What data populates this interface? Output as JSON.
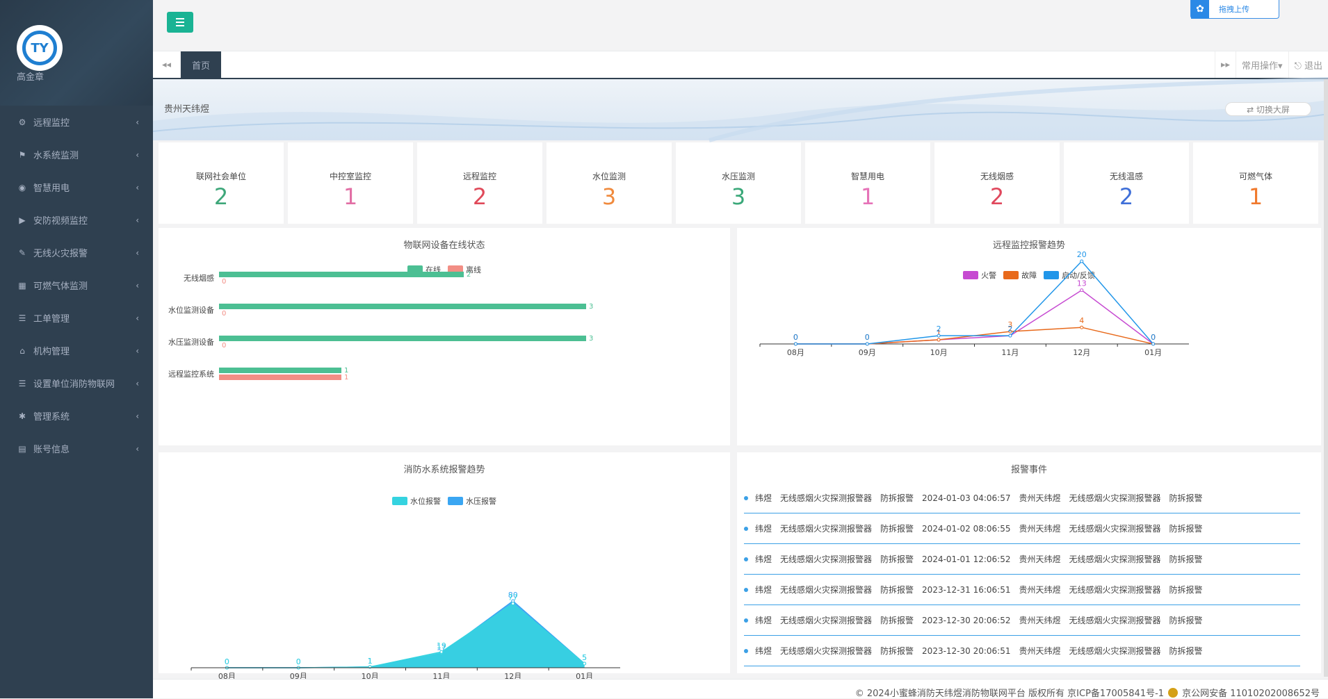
{
  "user": {
    "name": "高金章"
  },
  "sidebar": {
    "items": [
      {
        "label": "远程监控",
        "icon": "cogs-icon",
        "glyph": "⚙"
      },
      {
        "label": "水系统监测",
        "icon": "flag-icon",
        "glyph": "⚑"
      },
      {
        "label": "智慧用电",
        "icon": "compass-icon",
        "glyph": "◉"
      },
      {
        "label": "安防视频监控",
        "icon": "play-circle-icon",
        "glyph": "▶"
      },
      {
        "label": "无线火灾报警",
        "icon": "fire-icon",
        "glyph": "✎"
      },
      {
        "label": "可燃气体监测",
        "icon": "table-icon",
        "glyph": "▦"
      },
      {
        "label": "工单管理",
        "icon": "list-icon",
        "glyph": "☰"
      },
      {
        "label": "机构管理",
        "icon": "bank-icon",
        "glyph": "⌂"
      },
      {
        "label": "设置单位消防物联网",
        "icon": "list-icon",
        "glyph": "☰"
      },
      {
        "label": "管理系统",
        "icon": "gear-icon",
        "glyph": "✱"
      },
      {
        "label": "账号信息",
        "icon": "book-icon",
        "glyph": "▤"
      }
    ],
    "arrow": "‹"
  },
  "top": {
    "upload_label": "拖拽上传"
  },
  "tabs": {
    "home": "首页",
    "left_nav": "◂◂",
    "right_nav": "▸▸",
    "ops": "常用操作▾",
    "logout": "⎋ 退出"
  },
  "banner": {
    "title": "贵州天纬煜",
    "fullscreen": "⇄ 切换大屏"
  },
  "stats": [
    {
      "label": "联网社会单位",
      "value": "2",
      "color": "#3ea77a"
    },
    {
      "label": "中控室监控",
      "value": "1",
      "color": "#e26fa5"
    },
    {
      "label": "远程监控",
      "value": "2",
      "color": "#e04a5a"
    },
    {
      "label": "水位监测",
      "value": "3",
      "color": "#f08a3d"
    },
    {
      "label": "水压监测",
      "value": "3",
      "color": "#3aa879"
    },
    {
      "label": "智慧用电",
      "value": "1",
      "color": "#e673b8"
    },
    {
      "label": "无线烟感",
      "value": "2",
      "color": "#e0485d"
    },
    {
      "label": "无线温感",
      "value": "2",
      "color": "#3f6fd8"
    },
    {
      "label": "可燃气体",
      "value": "1",
      "color": "#f07a2e"
    }
  ],
  "chart_online": {
    "title": "物联网设备在线状态",
    "legend": [
      {
        "label": "在线",
        "color": "#4cbf93"
      },
      {
        "label": "离线",
        "color": "#f28e85"
      }
    ]
  },
  "chart_remote": {
    "title": "远程监控报警趋势",
    "legend": [
      {
        "label": "火警",
        "color": "#c64ad1"
      },
      {
        "label": "故障",
        "color": "#e8691b"
      },
      {
        "label": "启动/反馈",
        "color": "#2196e9"
      }
    ]
  },
  "chart_water": {
    "title": "消防水系统报警趋势",
    "legend": [
      {
        "label": "水位报警",
        "color": "#35d3e0"
      },
      {
        "label": "水压报警",
        "color": "#3aa6f2"
      }
    ]
  },
  "chart_data": [
    {
      "type": "bar",
      "orientation": "horizontal",
      "title": "物联网设备在线状态",
      "categories": [
        "无线烟感",
        "水位监测设备",
        "水压监测设备",
        "远程监控系统"
      ],
      "series": [
        {
          "name": "在线",
          "values": [
            2,
            3,
            3,
            1
          ],
          "color": "#4cbf93"
        },
        {
          "name": "离线",
          "values": [
            0,
            0,
            0,
            1
          ],
          "color": "#f28e85"
        }
      ],
      "xlim": [
        0,
        3
      ]
    },
    {
      "type": "line",
      "title": "远程监控报警趋势",
      "categories": [
        "08月",
        "09月",
        "10月",
        "11月",
        "12月",
        "01月"
      ],
      "series": [
        {
          "name": "火警",
          "values": [
            0,
            0,
            1,
            2,
            13,
            0
          ],
          "color": "#c64ad1"
        },
        {
          "name": "故障",
          "values": [
            0,
            0,
            1,
            3,
            4,
            0
          ],
          "color": "#e8691b"
        },
        {
          "name": "启动/反馈",
          "values": [
            0,
            0,
            2,
            2,
            20,
            0
          ],
          "color": "#2196e9"
        }
      ],
      "ylim": [
        0,
        20
      ]
    },
    {
      "type": "area",
      "title": "消防水系统报警趋势",
      "categories": [
        "08月",
        "09月",
        "10月",
        "11月",
        "12月",
        "01月"
      ],
      "series": [
        {
          "name": "水位报警",
          "values": [
            0,
            0,
            1,
            19,
            77,
            5
          ],
          "color": "#35d3e0"
        },
        {
          "name": "水压报警",
          "values": [
            0,
            0,
            1,
            17,
            80,
            5
          ],
          "color": "#3aa6f2"
        }
      ],
      "ylim": [
        0,
        80
      ]
    }
  ],
  "events": {
    "title": "报警事件",
    "rows": [
      {
        "a": "纬煜",
        "b": "无线感烟火灾探测报警器",
        "c": "防拆报警",
        "time": "2024-01-03 04:06:57",
        "org": "贵州天纬煜",
        "dev": "无线感烟火灾探测报警器",
        "type": "防拆报警"
      },
      {
        "a": "纬煜",
        "b": "无线感烟火灾探测报警器",
        "c": "防拆报警",
        "time": "2024-01-02 08:06:55",
        "org": "贵州天纬煜",
        "dev": "无线感烟火灾探测报警器",
        "type": "防拆报警"
      },
      {
        "a": "纬煜",
        "b": "无线感烟火灾探测报警器",
        "c": "防拆报警",
        "time": "2024-01-01 12:06:52",
        "org": "贵州天纬煜",
        "dev": "无线感烟火灾探测报警器",
        "type": "防拆报警"
      },
      {
        "a": "纬煜",
        "b": "无线感烟火灾探测报警器",
        "c": "防拆报警",
        "time": "2023-12-31 16:06:51",
        "org": "贵州天纬煜",
        "dev": "无线感烟火灾探测报警器",
        "type": "防拆报警"
      },
      {
        "a": "纬煜",
        "b": "无线感烟火灾探测报警器",
        "c": "防拆报警",
        "time": "2023-12-30 20:06:52",
        "org": "贵州天纬煜",
        "dev": "无线感烟火灾探测报警器",
        "type": "防拆报警"
      },
      {
        "a": "纬煜",
        "b": "无线感烟火灾探测报警器",
        "c": "防拆报警",
        "time": "2023-12-30 20:06:51",
        "org": "贵州天纬煜",
        "dev": "无线感烟火灾探测报警器",
        "type": "防拆报警"
      }
    ]
  },
  "footer": {
    "copyright": "© 2024小蜜蜂消防天纬煜消防物联网平台 版权所有 京ICP备17005841号-1",
    "police": "京公网安备 11010202008652号"
  }
}
